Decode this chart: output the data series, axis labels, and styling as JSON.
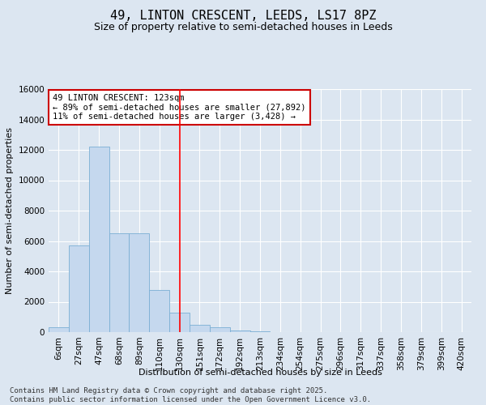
{
  "title_line1": "49, LINTON CRESCENT, LEEDS, LS17 8PZ",
  "title_line2": "Size of property relative to semi-detached houses in Leeds",
  "xlabel": "Distribution of semi-detached houses by size in Leeds",
  "ylabel": "Number of semi-detached properties",
  "footer_line1": "Contains HM Land Registry data © Crown copyright and database right 2025.",
  "footer_line2": "Contains public sector information licensed under the Open Government Licence v3.0.",
  "annotation_line1": "49 LINTON CRESCENT: 123sqm",
  "annotation_line2": "← 89% of semi-detached houses are smaller (27,892)",
  "annotation_line3": "11% of semi-detached houses are larger (3,428) →",
  "categories": [
    "6sqm",
    "27sqm",
    "47sqm",
    "68sqm",
    "89sqm",
    "110sqm",
    "130sqm",
    "151sqm",
    "172sqm",
    "192sqm",
    "213sqm",
    "234sqm",
    "254sqm",
    "275sqm",
    "296sqm",
    "317sqm",
    "337sqm",
    "358sqm",
    "379sqm",
    "399sqm",
    "420sqm"
  ],
  "bar_values": [
    300,
    5700,
    12200,
    6500,
    6500,
    2800,
    1300,
    500,
    300,
    100,
    50,
    20,
    10,
    5,
    2,
    0,
    0,
    0,
    0,
    0,
    0
  ],
  "bar_color": "#c5d8ee",
  "bar_edge_color": "#7bafd4",
  "red_line_x": 6.0,
  "ylim": [
    0,
    16000
  ],
  "yticks": [
    0,
    2000,
    4000,
    6000,
    8000,
    10000,
    12000,
    14000,
    16000
  ],
  "background_color": "#dce6f1",
  "plot_bg_color": "#dce6f1",
  "grid_color": "#ffffff",
  "annotation_box_color": "#ffffff",
  "annotation_box_edge_color": "#cc0000",
  "title_fontsize": 11,
  "subtitle_fontsize": 9,
  "axis_label_fontsize": 8,
  "tick_fontsize": 7.5,
  "annotation_fontsize": 7.5,
  "footer_fontsize": 6.5
}
